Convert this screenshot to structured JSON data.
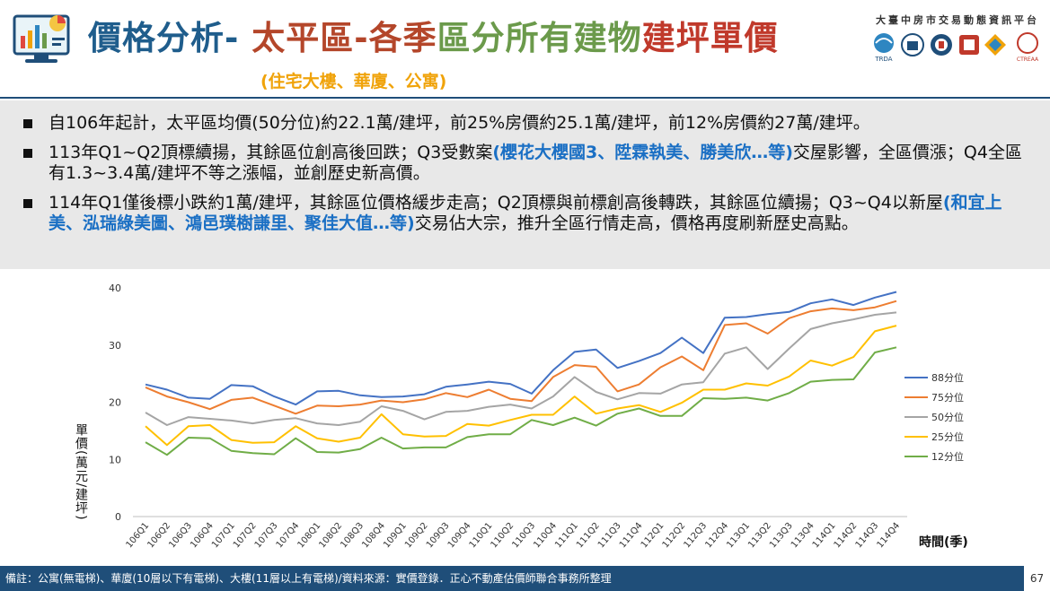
{
  "header": {
    "title_parts": [
      "價格分析-",
      "太平區-各季",
      "區分所有建物",
      "建坪單價"
    ],
    "subtitle": "(住宅大樓、華廈、公寓)",
    "org_name": "大臺中房市交易動態資訊平台",
    "partner_logo_label": "TRDA",
    "partner_logo_label2": "CTREAA"
  },
  "bullets": [
    {
      "parts": [
        {
          "text": "自106年起計，太平區均價(50分位)約22.1萬/建坪，前25%房價約25.1萬/建坪，前12%房價約27萬/建坪。"
        }
      ]
    },
    {
      "parts": [
        {
          "text": "113年Q1~Q2頂標續揚，其餘區位創高後回跌；Q3受數案"
        },
        {
          "text": "(櫻花大櫻國3、陞霖執美、勝美欣…等)",
          "hl": true
        },
        {
          "text": "交屋影響，全區價漲；Q4全區有1.3~3.4萬/建坪不等之漲幅，並創歷史新高價。"
        }
      ]
    },
    {
      "parts": [
        {
          "text": "114年Q1僅後標小跌約1萬/建坪，其餘區位價格緩步走高；Q2頂標與前標創高後轉跌，其餘區位續揚；Q3~Q4以新屋"
        },
        {
          "text": "(和宜上美、泓瑞綠美圖、鴻邑璞樹謙里、聚佳大值…等)",
          "hl": true
        },
        {
          "text": "交易佔大宗，推升全區行情走高，價格再度刷新歷史高點。"
        }
      ]
    }
  ],
  "chart_data": {
    "type": "line",
    "ylabel": "單價(萬元/建坪)",
    "xlabel": "時間(季)",
    "ylim": [
      0,
      40
    ],
    "yticks": [
      0,
      10,
      20,
      30,
      40
    ],
    "grid": false,
    "legend_position": "right",
    "categories": [
      "106Q1",
      "106Q2",
      "106Q3",
      "106Q4",
      "107Q1",
      "107Q2",
      "107Q3",
      "107Q4",
      "108Q1",
      "108Q2",
      "108Q3",
      "108Q4",
      "109Q1",
      "109Q2",
      "109Q3",
      "109Q4",
      "110Q1",
      "110Q2",
      "110Q3",
      "110Q4",
      "111Q1",
      "111Q2",
      "111Q3",
      "111Q4",
      "112Q1",
      "112Q2",
      "112Q3",
      "112Q4",
      "113Q1",
      "113Q2",
      "113Q3",
      "113Q4",
      "114Q1",
      "114Q2",
      "114Q3",
      "114Q4"
    ],
    "series": [
      {
        "name": "88分位",
        "color": "#4472c4",
        "values": [
          23.1,
          22.2,
          20.8,
          20.6,
          23.0,
          22.8,
          21.0,
          19.6,
          21.9,
          22.0,
          21.2,
          20.9,
          21.0,
          21.4,
          22.7,
          23.1,
          23.6,
          23.2,
          21.5,
          25.6,
          28.8,
          29.2,
          26.0,
          27.2,
          28.6,
          31.3,
          28.6,
          34.8,
          34.9,
          35.4,
          35.8,
          37.3,
          38.0,
          37.0,
          38.3,
          39.3
        ]
      },
      {
        "name": "75分位",
        "color": "#ed7d31",
        "values": [
          22.6,
          21.0,
          20.0,
          18.8,
          20.4,
          20.8,
          19.4,
          18.0,
          19.4,
          19.3,
          19.6,
          20.3,
          20.0,
          20.5,
          21.6,
          20.9,
          22.2,
          20.6,
          20.2,
          24.4,
          26.5,
          26.2,
          21.9,
          23.1,
          26.1,
          28.0,
          25.6,
          33.5,
          33.8,
          32.0,
          34.7,
          35.9,
          36.4,
          36.1,
          36.6,
          37.7
        ]
      },
      {
        "name": "50分位",
        "color": "#a5a5a5",
        "values": [
          18.2,
          16.0,
          17.4,
          17.1,
          16.8,
          16.3,
          16.9,
          17.2,
          16.3,
          16.0,
          16.6,
          19.3,
          18.5,
          17.0,
          18.3,
          18.5,
          19.2,
          19.6,
          18.9,
          21.0,
          24.4,
          21.8,
          20.5,
          21.6,
          21.5,
          23.1,
          23.5,
          28.5,
          29.6,
          25.8,
          29.4,
          32.8,
          33.8,
          34.5,
          35.3,
          35.7
        ]
      },
      {
        "name": "25分位",
        "color": "#ffc000",
        "values": [
          15.8,
          12.5,
          15.8,
          16.0,
          13.4,
          12.9,
          13.0,
          15.8,
          13.7,
          13.1,
          13.8,
          17.9,
          14.4,
          14.0,
          14.1,
          16.2,
          15.9,
          16.9,
          17.8,
          17.8,
          21.0,
          18.0,
          18.9,
          19.5,
          18.3,
          19.9,
          22.2,
          22.2,
          23.3,
          22.9,
          24.5,
          27.3,
          26.4,
          27.9,
          32.4,
          33.4
        ]
      },
      {
        "name": "12分位",
        "color": "#70ad47",
        "values": [
          13.0,
          10.8,
          13.8,
          13.7,
          11.5,
          11.1,
          10.9,
          13.7,
          11.3,
          11.2,
          11.8,
          13.8,
          11.9,
          12.1,
          12.1,
          13.9,
          14.4,
          14.4,
          16.9,
          16.0,
          17.3,
          15.9,
          18.0,
          18.9,
          17.6,
          17.6,
          20.7,
          20.6,
          20.8,
          20.3,
          21.6,
          23.6,
          23.9,
          24.0,
          28.7,
          29.6
        ]
      }
    ]
  },
  "footer": {
    "note": "備註：公寓(無電梯)、華廈(10層以下有電梯)、大樓(11層以上有電梯)/資料來源：實價登錄．正心不動產估價師聯合事務所整理",
    "page": "67"
  }
}
